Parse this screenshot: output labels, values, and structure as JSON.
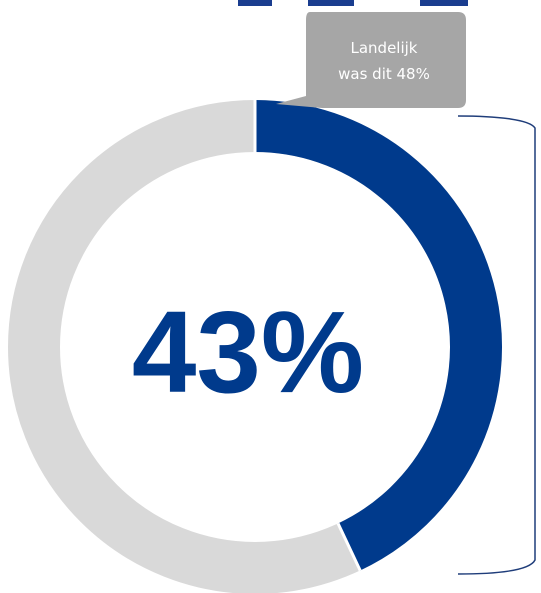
{
  "chart_data": {
    "type": "pie",
    "value_percent": 43,
    "remainder_percent": 57,
    "center_label": "43%",
    "colors": {
      "value": "#003a8c",
      "remainder": "#d9d9d9",
      "callout": "#a6a6a6",
      "callout_text": "#ffffff",
      "bracket": "#1f3d7a"
    }
  },
  "callout": {
    "line1": "Landelijk",
    "line2": "was dit 48%"
  }
}
